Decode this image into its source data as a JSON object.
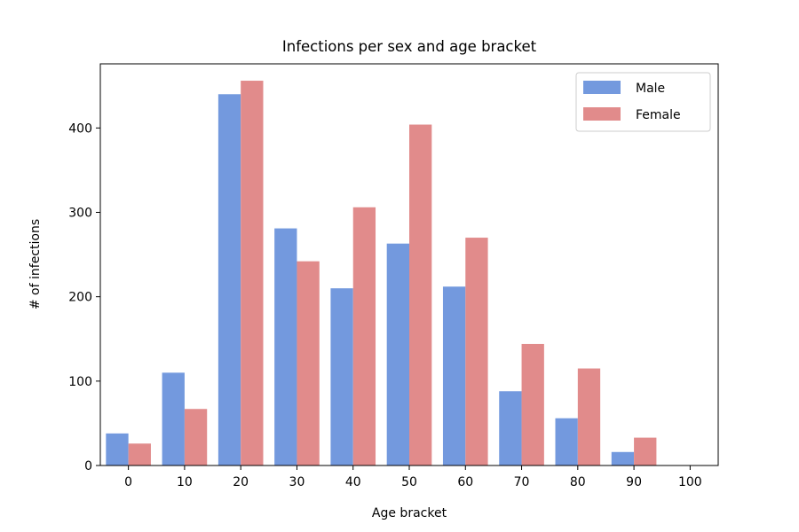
{
  "chart_data": {
    "type": "bar",
    "title": "Infections per sex and age bracket",
    "xlabel": "Age bracket",
    "ylabel": "# of infections",
    "categories": [
      "0",
      "10",
      "20",
      "30",
      "40",
      "50",
      "60",
      "70",
      "80",
      "90",
      "100"
    ],
    "series": [
      {
        "name": "Male",
        "color": "#7399de",
        "values": [
          38,
          110,
          440,
          281,
          210,
          263,
          212,
          88,
          56,
          16,
          0
        ]
      },
      {
        "name": "Female",
        "color": "#e18b8b",
        "values": [
          26,
          67,
          456,
          242,
          306,
          404,
          270,
          144,
          115,
          33,
          0
        ]
      }
    ],
    "ylim": [
      0,
      476
    ],
    "yticks": [
      0,
      100,
      200,
      300,
      400
    ],
    "grid": false,
    "legend": "top-right"
  }
}
